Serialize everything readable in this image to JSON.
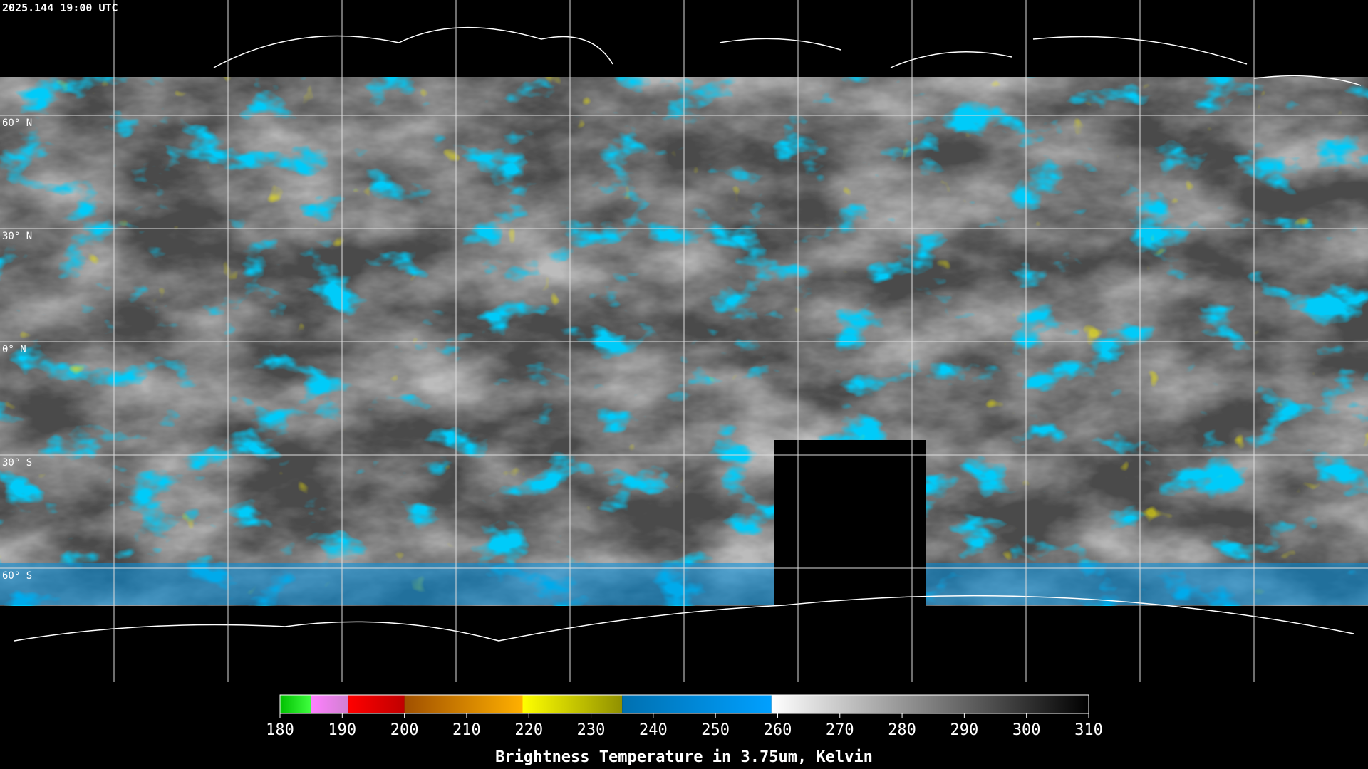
{
  "header": {
    "timestamp": "2025.144 19:00 UTC"
  },
  "grid": {
    "lat_labels": [
      "60° N",
      "30° N",
      "0° N",
      "30° S",
      "60° S"
    ]
  },
  "colorbar": {
    "title": "Brightness Temperature in 3.75um, Kelvin",
    "range": [
      180,
      310
    ],
    "ticks": [
      180,
      190,
      200,
      210,
      220,
      230,
      240,
      250,
      260,
      270,
      280,
      290,
      300,
      310
    ],
    "segments": [
      {
        "from": 180,
        "to": 185,
        "colors": [
          "#00c000",
          "#40ff40"
        ]
      },
      {
        "from": 185,
        "to": 191,
        "colors": [
          "#ff80ff",
          "#d080d0"
        ]
      },
      {
        "from": 191,
        "to": 200,
        "colors": [
          "#ff0000",
          "#c00000"
        ]
      },
      {
        "from": 200,
        "to": 219,
        "colors": [
          "#a05000",
          "#ffb000"
        ]
      },
      {
        "from": 219,
        "to": 235,
        "colors": [
          "#ffff00",
          "#909000"
        ]
      },
      {
        "from": 235,
        "to": 259,
        "colors": [
          "#0070b0",
          "#00a0ff"
        ]
      },
      {
        "from": 259,
        "to": 310,
        "colors": [
          "#ffffff",
          "#000000"
        ]
      }
    ]
  }
}
